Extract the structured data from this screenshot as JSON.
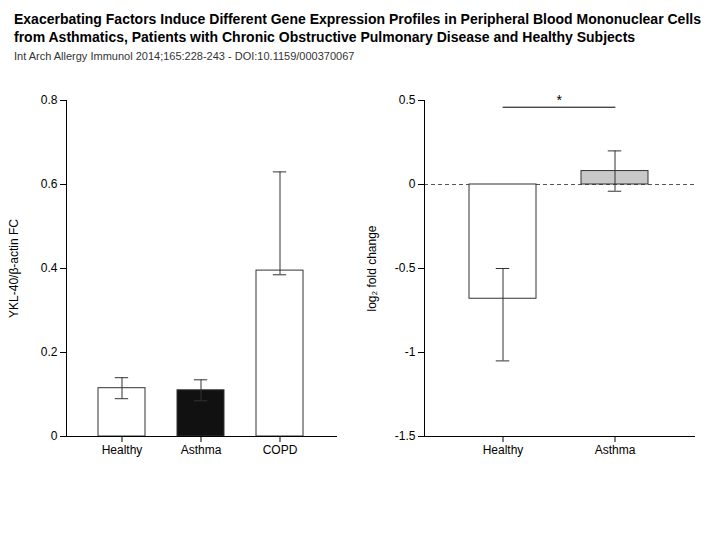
{
  "title": "Exacerbating Factors Induce Different Gene Expression Profiles in Peripheral Blood Mononuclear Cells from Asthmatics, Patients with Chronic Obstructive Pulmonary Disease and Healthy Subjects",
  "subtitle": "Int Arch Allergy Immunol 2014;165:228-243 -  DOI:10.1159/000370067",
  "chart_data": [
    {
      "type": "bar",
      "categories": [
        "Healthy",
        "Asthma",
        "COPD"
      ],
      "values": [
        0.115,
        0.11,
        0.395
      ],
      "errors_pos": [
        0.025,
        0.025,
        0.235
      ],
      "errors_neg": [
        0.025,
        0.025,
        0.01
      ],
      "colors": [
        "#ffffff",
        "#111111",
        "#ffffff"
      ],
      "ylabel": "YKL-40/β-actin FC",
      "ylim": [
        0.0,
        0.8
      ],
      "yticks": [
        0.0,
        0.2,
        0.4,
        0.6,
        0.8
      ]
    },
    {
      "type": "bar",
      "categories": [
        "Healthy",
        "Asthma"
      ],
      "values": [
        -0.68,
        0.08
      ],
      "errors_pos": [
        0.18,
        0.12
      ],
      "errors_neg": [
        0.37,
        0.12
      ],
      "colors": [
        "#ffffff",
        "#c8c8c8"
      ],
      "ylabel": "log₂ fold change",
      "ylim": [
        -1.5,
        0.5
      ],
      "yticks": [
        -1.5,
        -1.0,
        -0.5,
        0.0,
        0.5
      ],
      "reference_y": 0.0,
      "significance": {
        "between": [
          "Healthy",
          "Asthma"
        ],
        "y": 0.46,
        "label": "*"
      }
    }
  ]
}
